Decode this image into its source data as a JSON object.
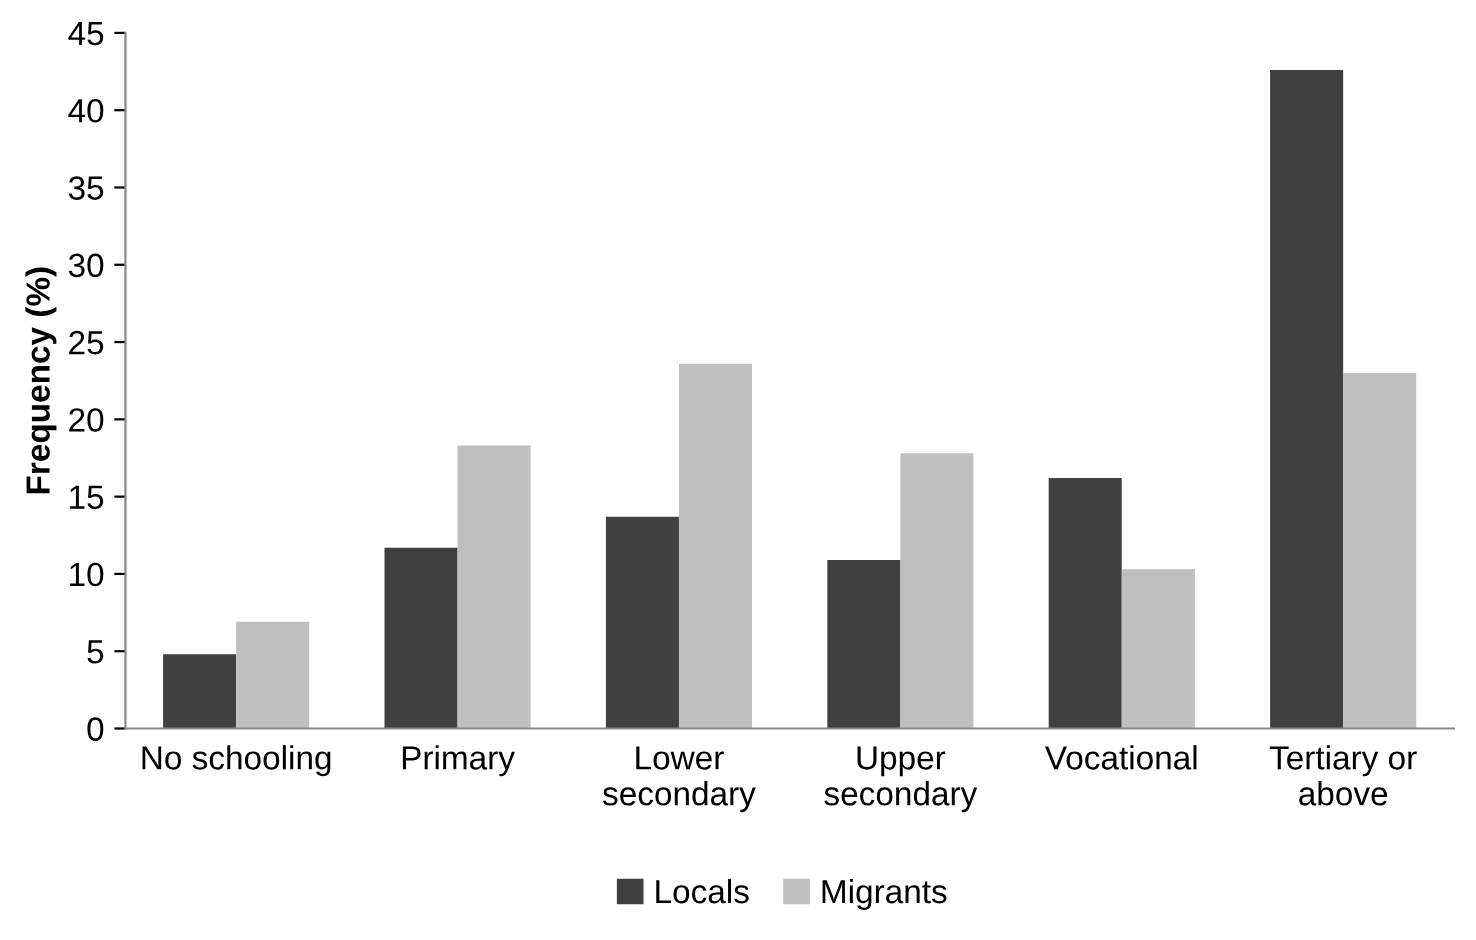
{
  "chart_data": {
    "type": "bar",
    "ylabel": "Frequency (%)",
    "categories": [
      "No schooling",
      "Primary",
      "Lower\nsecondary",
      "Upper\nsecondary",
      "Vocational",
      "Tertiary or\nabove"
    ],
    "series": [
      {
        "name": "Locals",
        "color": "#404040",
        "values": [
          4.8,
          11.7,
          13.7,
          10.9,
          16.2,
          42.6
        ]
      },
      {
        "name": "Migrants",
        "color": "#bfbfbf",
        "values": [
          6.9,
          18.3,
          23.6,
          17.8,
          10.3,
          23.0
        ]
      }
    ],
    "ylim": [
      0,
      45
    ],
    "yticks": [
      0,
      5,
      10,
      15,
      20,
      25,
      30,
      35,
      40,
      45
    ],
    "grid": false,
    "legend": "bottom"
  }
}
